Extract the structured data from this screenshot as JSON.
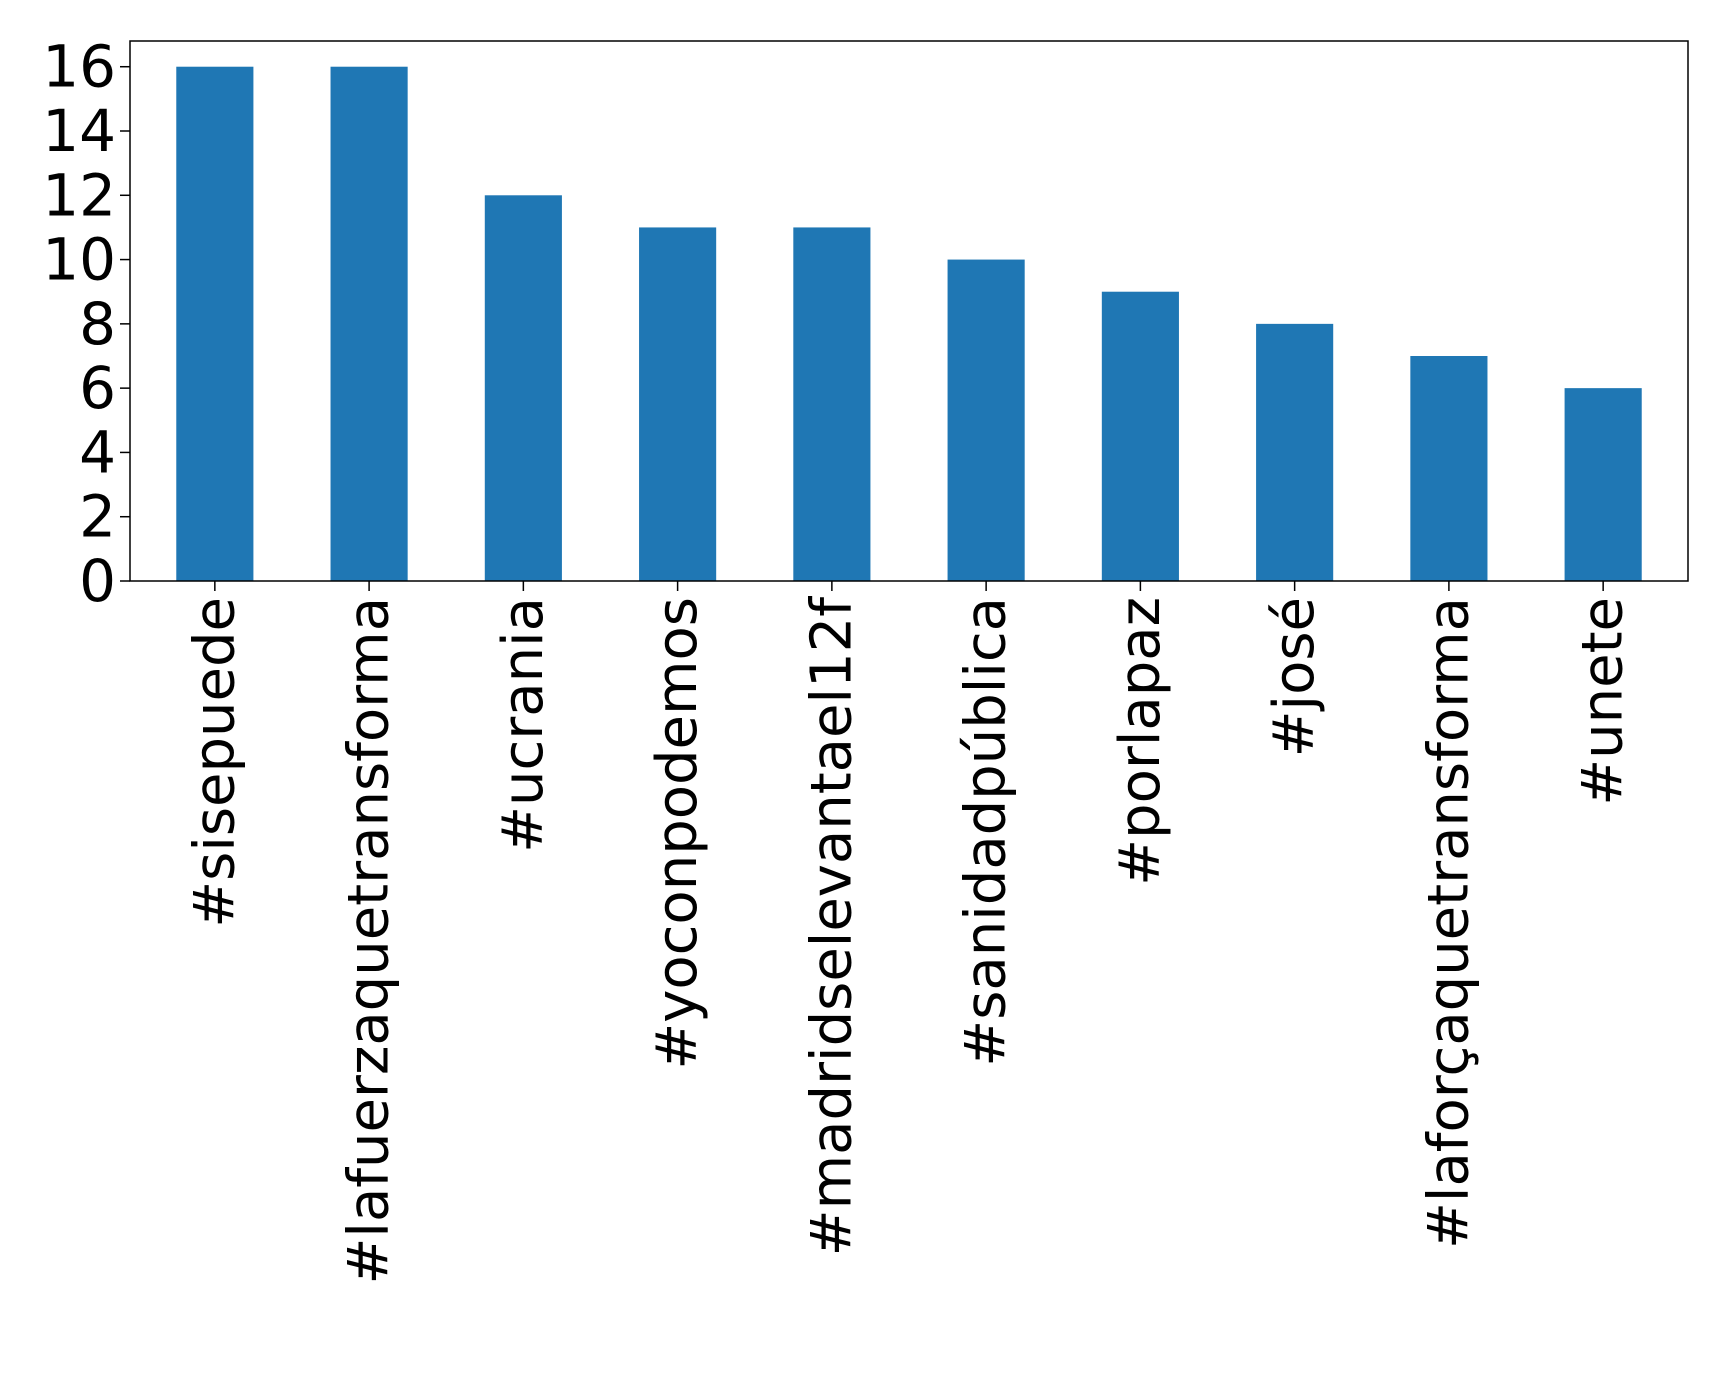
{
  "chart_data": {
    "type": "bar",
    "title": "",
    "xlabel": "",
    "ylabel": "",
    "categories": [
      "#sisepuede",
      "#lafuerzaquetransforma",
      "#ucrania",
      "#yoconpodemos",
      "#madridselevantael12f",
      "#sanidadpública",
      "#porlapaz",
      "#josé",
      "#laforçaquetransforma",
      "#unete"
    ],
    "values": [
      16,
      16,
      12,
      11,
      11,
      10,
      9,
      8,
      7,
      6
    ],
    "ylim": [
      0,
      16.8
    ],
    "yticks": [
      0,
      2,
      4,
      6,
      8,
      10,
      12,
      14,
      16
    ],
    "bar_color": "#1f77b4",
    "grid": false,
    "legend": "none"
  }
}
